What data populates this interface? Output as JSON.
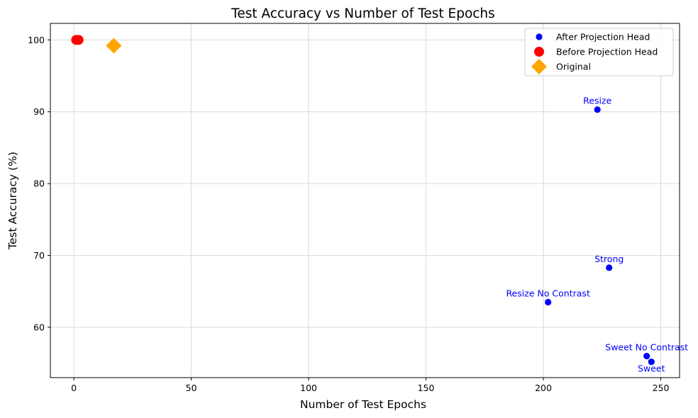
{
  "chart_data": {
    "type": "scatter",
    "title": "Test Accuracy vs Number of Test Epochs",
    "xlabel": "Number of Test Epochs",
    "ylabel": "Test Accuracy (%)",
    "xlim": [
      -10,
      258
    ],
    "ylim": [
      53,
      102.3
    ],
    "xticks": [
      0,
      50,
      100,
      150,
      200,
      250
    ],
    "yticks": [
      60,
      70,
      80,
      90,
      100
    ],
    "grid": true,
    "legend_position": "top-right",
    "series": [
      {
        "name": "After Projection Head",
        "marker": "circle",
        "color": "#0000ff",
        "points": [
          {
            "x": 223,
            "y": 90.3,
            "label": "Resize",
            "label_pos": "above"
          },
          {
            "x": 228,
            "y": 68.3,
            "label": "Strong",
            "label_pos": "above"
          },
          {
            "x": 202,
            "y": 63.5,
            "label": "Resize No Contrast",
            "label_pos": "above"
          },
          {
            "x": 244,
            "y": 56.0,
            "label": "Sweet No Contrast",
            "label_pos": "above"
          },
          {
            "x": 246,
            "y": 55.2,
            "label": "Sweet",
            "label_pos": "below"
          }
        ]
      },
      {
        "name": "Before Projection Head",
        "marker": "circle-large",
        "color": "#ff0000",
        "points": [
          {
            "x": 1,
            "y": 100.0
          },
          {
            "x": 2,
            "y": 100.0
          }
        ]
      },
      {
        "name": "Original",
        "marker": "diamond",
        "color": "#ffa500",
        "points": [
          {
            "x": 17,
            "y": 99.2
          }
        ]
      }
    ]
  }
}
